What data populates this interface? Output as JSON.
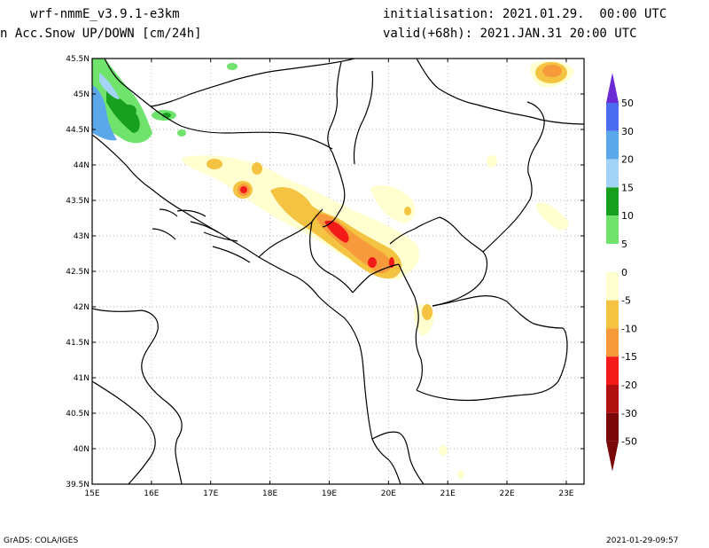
{
  "header": {
    "model": "wrf-nmmE_v3.9.1-e3km",
    "field": "n Acc.Snow UP/DOWN [cm/24h]",
    "init": "initialisation: 2021.01.29.  00:00 UTC",
    "valid": "valid(+68h): 2021.JAN.31 20:00 UTC"
  },
  "footer": {
    "left": "GrADS: COLA/IGES",
    "right": "2021-01-29-09:57"
  },
  "map": {
    "lon_ticks": [
      "15E",
      "16E",
      "17E",
      "18E",
      "19E",
      "20E",
      "21E",
      "22E",
      "23E"
    ],
    "lat_ticks": [
      "45.5N",
      "45N",
      "44.5N",
      "44N",
      "43.5N",
      "43N",
      "42.5N",
      "42N",
      "41.5N",
      "41N",
      "40.5N",
      "40N",
      "39.5N"
    ],
    "lon_range": [
      15,
      23.3
    ],
    "lat_range": [
      39.5,
      45.5
    ],
    "grid": "dotted"
  },
  "colorbar": {
    "labels": [
      "50",
      "30",
      "20",
      "15",
      "10",
      "5",
      "0",
      "-5",
      "-10",
      "-15",
      "-20",
      "-30",
      "-50"
    ],
    "colors": [
      "#6a2bd6",
      "#4b6cf0",
      "#5aa8ea",
      "#a3d4f8",
      "#17a01e",
      "#6fe36c",
      "#ffffff",
      "#ffffd0",
      "#f5c342",
      "#f79a3b",
      "#f41a1a",
      "#b01010",
      "#7a0808"
    ]
  }
}
